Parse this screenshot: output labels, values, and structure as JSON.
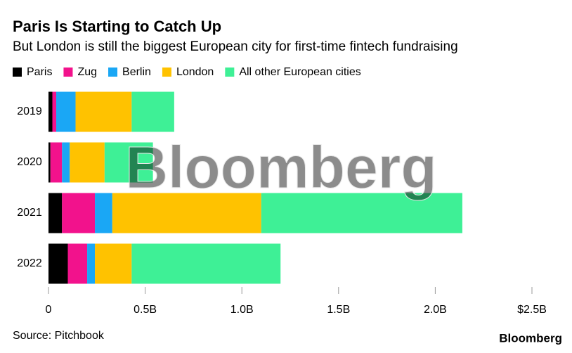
{
  "chart_data": {
    "type": "stacked-bar-horizontal",
    "title": "Paris Is Starting to Catch Up",
    "subtitle": "But London is still the biggest European city for first-time fintech fundraising",
    "categories": [
      "2019",
      "2020",
      "2021",
      "2022"
    ],
    "series": [
      {
        "name": "Paris",
        "color": "#000000",
        "values": [
          0.02,
          0.01,
          0.07,
          0.1
        ]
      },
      {
        "name": "Zug",
        "color": "#f2128c",
        "values": [
          0.02,
          0.06,
          0.17,
          0.1
        ]
      },
      {
        "name": "Berlin",
        "color": "#1aa7f5",
        "values": [
          0.1,
          0.04,
          0.09,
          0.04
        ]
      },
      {
        "name": "London",
        "color": "#ffc200",
        "values": [
          0.29,
          0.18,
          0.77,
          0.19
        ]
      },
      {
        "name": "All other European cities",
        "color": "#3ef096",
        "values": [
          0.22,
          0.25,
          1.04,
          0.77
        ]
      }
    ],
    "xlim": [
      0,
      2.5
    ],
    "xticks": [
      0,
      {
        "value": 0.5,
        "label": "0.5B"
      },
      {
        "value": 1.0,
        "label": "1.0B"
      },
      {
        "value": 1.5,
        "label": "1.5B"
      },
      {
        "value": 2.0,
        "label": "2.0B"
      },
      {
        "value": 2.5,
        "label": "$2.5B"
      }
    ],
    "source": "Source: Pitchbook",
    "brand": "Bloomberg",
    "watermark": "Bloomberg",
    "legend": "top"
  }
}
